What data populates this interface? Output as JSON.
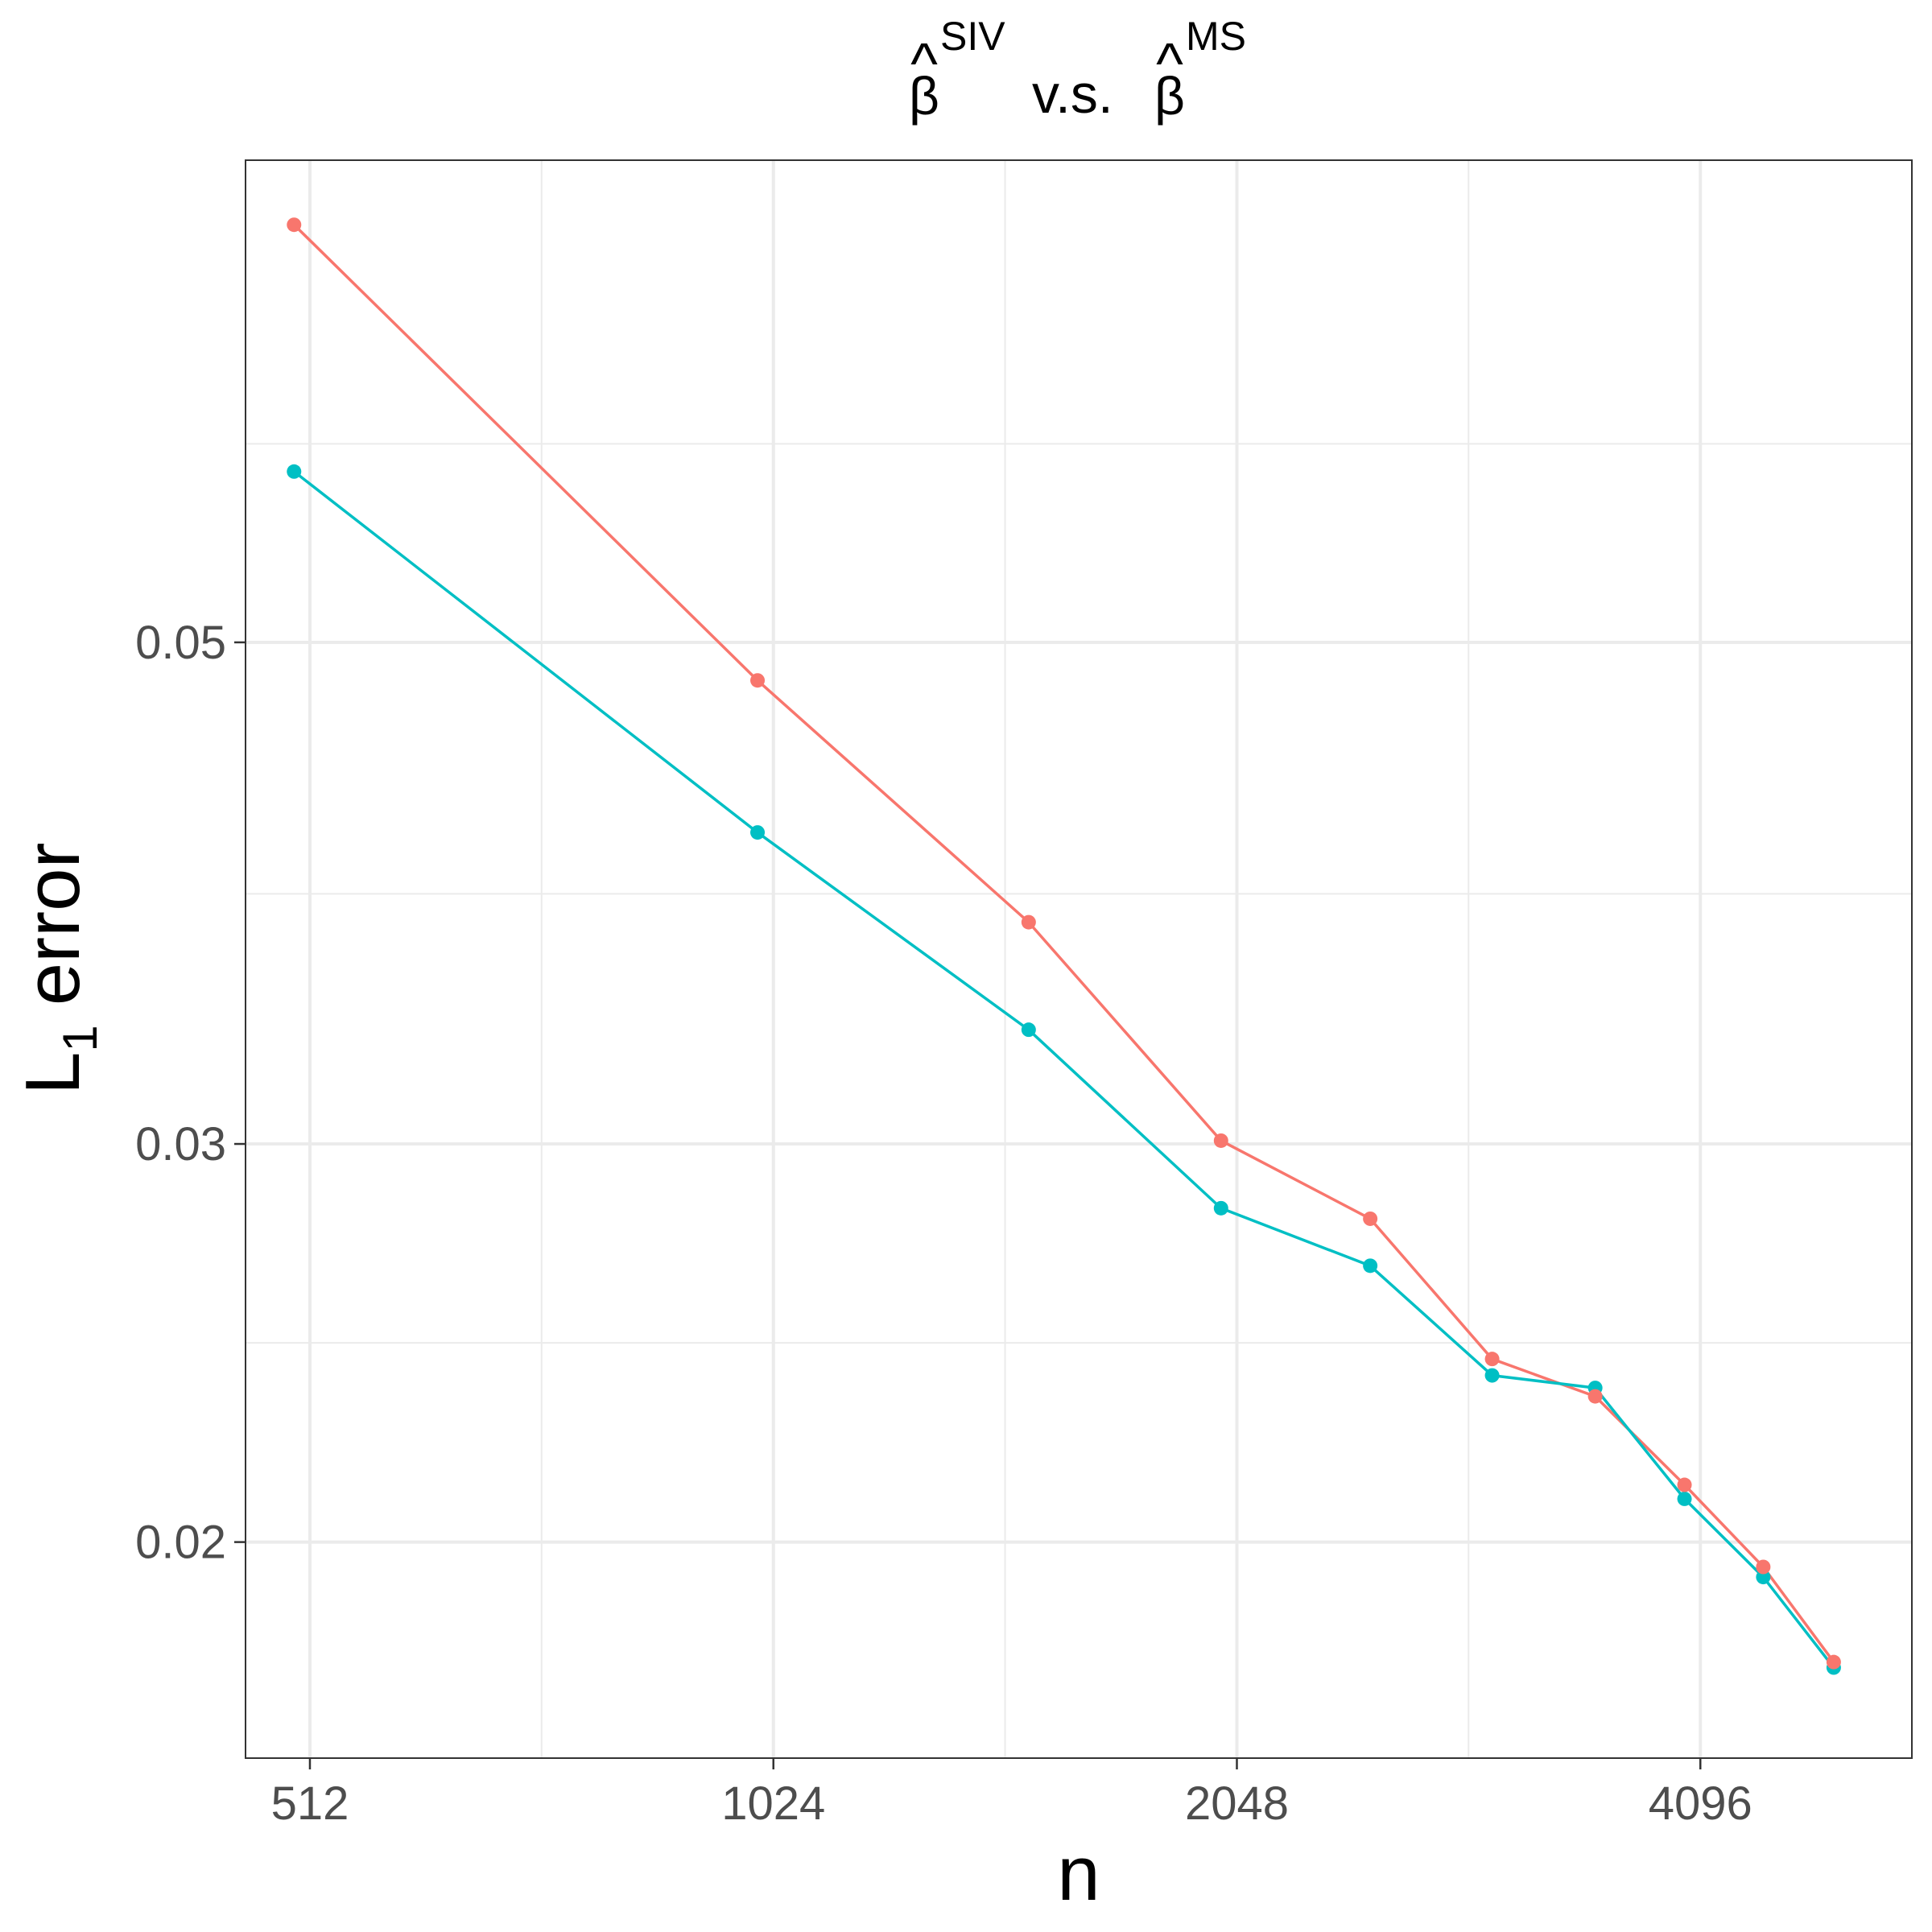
{
  "chart_data": {
    "type": "line",
    "title": {
      "left_symbol": "β",
      "left_superscript": "SIV",
      "connector": "v.s.",
      "right_symbol": "β",
      "right_superscript": "MS",
      "hat": "^"
    },
    "xlabel": "n",
    "ylabel": {
      "main": "L",
      "subscript": "1",
      "rest": "error"
    },
    "x_scale": "log2",
    "y_scale": "log10",
    "xlim": [
      465,
      5620
    ],
    "ylim": [
      0.01605,
      0.0817
    ],
    "x_ticks": [
      {
        "value": 512,
        "label": "512"
      },
      {
        "value": 1024,
        "label": "1024"
      },
      {
        "value": 2048,
        "label": "2048"
      },
      {
        "value": 4096,
        "label": "4096"
      }
    ],
    "x_minor": [
      724,
      1448,
      2896
    ],
    "y_ticks": [
      {
        "value": 0.02,
        "label": "0.02"
      },
      {
        "value": 0.03,
        "label": "0.03"
      },
      {
        "value": 0.05,
        "label": "0.05"
      }
    ],
    "y_minor": [
      0.0245,
      0.0387,
      0.0612
    ],
    "series": [
      {
        "name": "SIV",
        "color": "#F8766D",
        "x": [
          500,
          1000,
          1500,
          2000,
          2500,
          3000,
          3500,
          4000,
          4500,
          5000
        ],
        "y": [
          0.0765,
          0.0481,
          0.0376,
          0.0301,
          0.0278,
          0.0241,
          0.0232,
          0.0212,
          0.0195,
          0.0177
        ]
      },
      {
        "name": "MS",
        "color": "#00BFC4",
        "x": [
          500,
          1000,
          1500,
          2000,
          2500,
          3000,
          3500,
          4000,
          4500,
          5000
        ],
        "y": [
          0.0595,
          0.0412,
          0.0337,
          0.0281,
          0.0265,
          0.0237,
          0.0234,
          0.0209,
          0.0193,
          0.0176
        ]
      }
    ]
  }
}
